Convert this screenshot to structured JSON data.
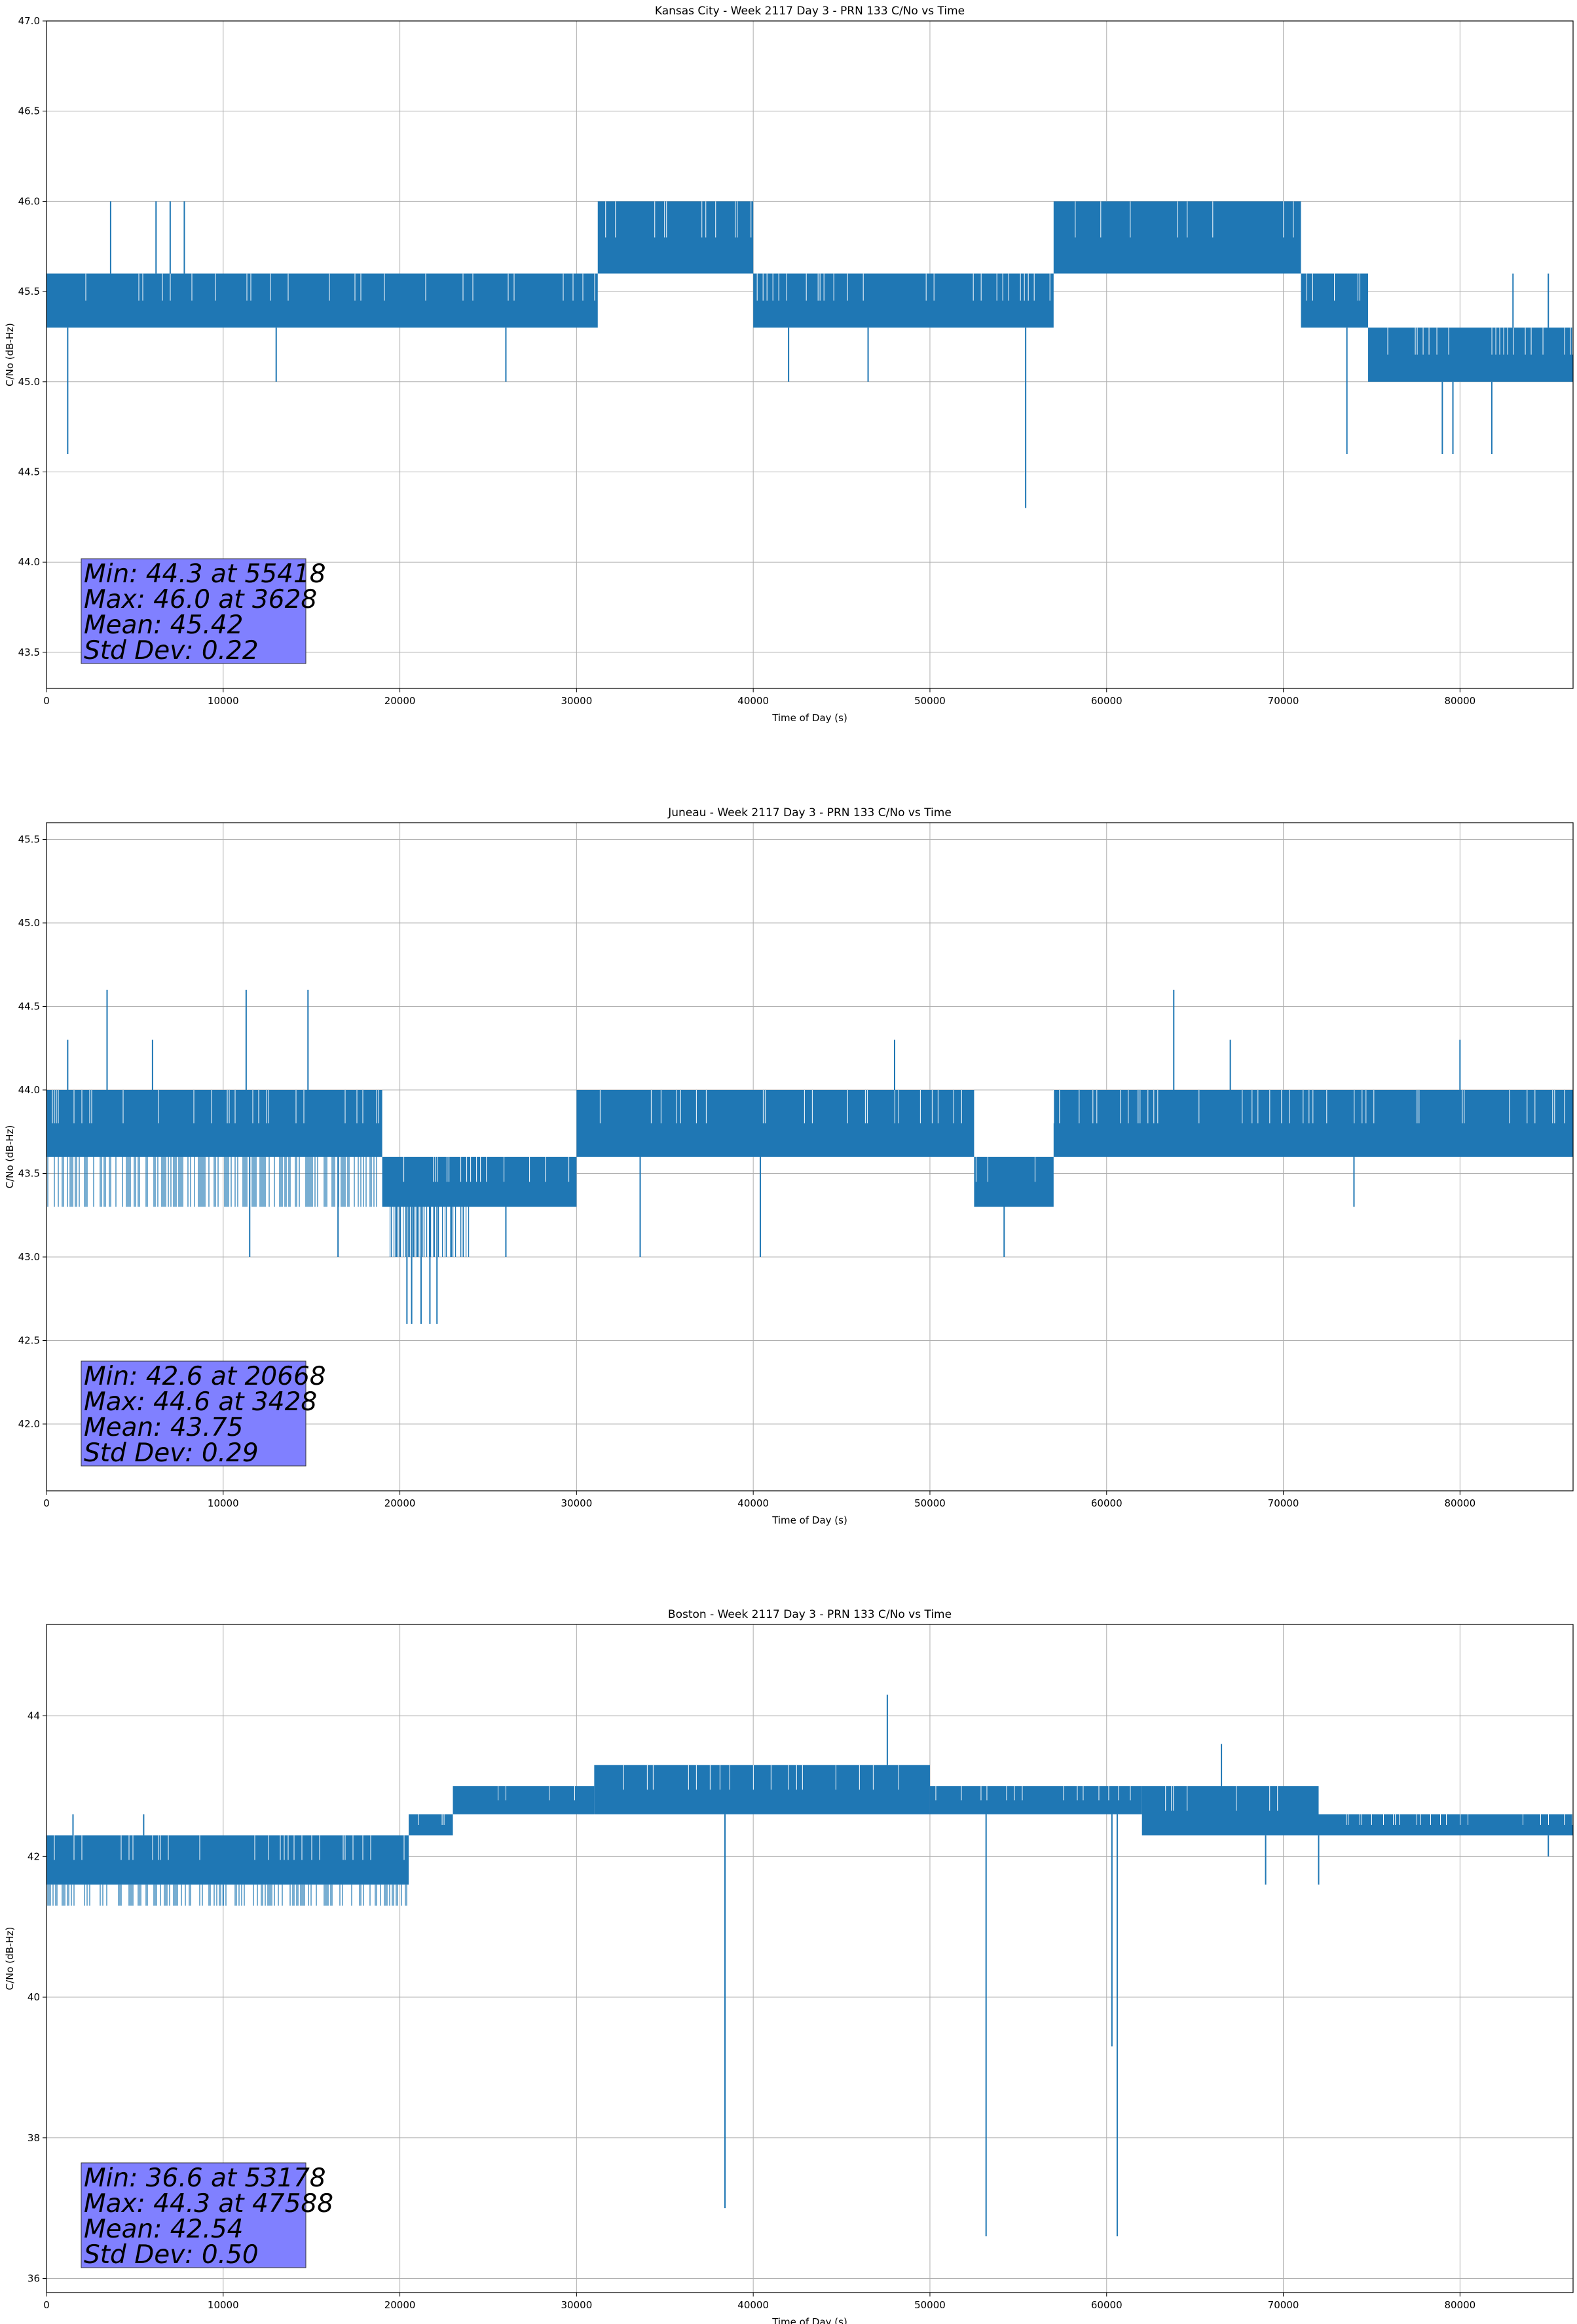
{
  "chart_data": [
    {
      "type": "line",
      "title": "Kansas City - Week 2117 Day 3 - PRN 133 C/No vs Time",
      "xlabel": "Time of Day (s)",
      "ylabel": "C/No (dB-Hz)",
      "xlim": [
        0,
        86400
      ],
      "ylim": [
        43.3,
        47.0
      ],
      "xticks": [
        0,
        10000,
        20000,
        30000,
        40000,
        50000,
        60000,
        70000,
        80000
      ],
      "yticks": [
        "43.5",
        "44.0",
        "44.5",
        "45.0",
        "45.5",
        "46.0",
        "46.5",
        "47.0"
      ],
      "grid": true,
      "color": "#1f77b4",
      "series": [
        {
          "segments": [
            {
              "x0": 0,
              "x1": 31200,
              "low": 45.3,
              "high": 45.6
            },
            {
              "x0": 31200,
              "x1": 40000,
              "low": 45.6,
              "high": 46.0
            },
            {
              "x0": 40000,
              "x1": 57000,
              "low": 45.3,
              "high": 45.6
            },
            {
              "x0": 57000,
              "x1": 71000,
              "low": 45.6,
              "high": 46.0
            },
            {
              "x0": 71000,
              "x1": 74800,
              "low": 45.3,
              "high": 45.6
            },
            {
              "x0": 74800,
              "x1": 86400,
              "low": 45.0,
              "high": 45.3
            }
          ],
          "spikes": [
            {
              "x": 1200,
              "y": 44.6
            },
            {
              "x": 3628,
              "y": 46.0
            },
            {
              "x": 6200,
              "y": 46.0
            },
            {
              "x": 7000,
              "y": 46.0
            },
            {
              "x": 7800,
              "y": 46.0
            },
            {
              "x": 13000,
              "y": 45.0
            },
            {
              "x": 26000,
              "y": 45.0
            },
            {
              "x": 33500,
              "y": 45.6
            },
            {
              "x": 42000,
              "y": 45.0
            },
            {
              "x": 46500,
              "y": 45.0
            },
            {
              "x": 55418,
              "y": 44.3
            },
            {
              "x": 73600,
              "y": 44.6
            },
            {
              "x": 79000,
              "y": 44.6
            },
            {
              "x": 79600,
              "y": 44.6
            },
            {
              "x": 81800,
              "y": 44.6
            },
            {
              "x": 83000,
              "y": 45.6
            },
            {
              "x": 85000,
              "y": 45.6
            }
          ]
        }
      ],
      "stats": [
        "Min: 44.3 at 55418",
        "Max: 46.0 at 3628",
        "Mean: 45.42",
        "Std Dev: 0.22"
      ]
    },
    {
      "type": "line",
      "title": "Juneau - Week 2117 Day 3 - PRN 133 C/No vs Time",
      "xlabel": "Time of Day (s)",
      "ylabel": "C/No (dB-Hz)",
      "xlim": [
        0,
        86400
      ],
      "ylim": [
        41.6,
        45.6
      ],
      "xticks": [
        0,
        10000,
        20000,
        30000,
        40000,
        50000,
        60000,
        70000,
        80000
      ],
      "yticks": [
        "42.0",
        "42.5",
        "43.0",
        "43.5",
        "44.0",
        "44.5",
        "45.0",
        "45.5"
      ],
      "grid": true,
      "color": "#1f77b4",
      "series": [
        {
          "segments": [
            {
              "x0": 0,
              "x1": 19000,
              "low": 43.6,
              "high": 44.0
            },
            {
              "x0": 0,
              "x1": 19000,
              "low": 43.3,
              "high": 43.6,
              "density": 0.5
            },
            {
              "x0": 19000,
              "x1": 30000,
              "low": 43.3,
              "high": 43.6
            },
            {
              "x0": 19000,
              "x1": 24000,
              "low": 43.0,
              "high": 43.3,
              "density": 0.6
            },
            {
              "x0": 30000,
              "x1": 52500,
              "low": 43.6,
              "high": 44.0
            },
            {
              "x0": 52500,
              "x1": 57000,
              "low": 43.3,
              "high": 43.6
            },
            {
              "x0": 57000,
              "x1": 86400,
              "low": 43.6,
              "high": 44.0
            }
          ],
          "spikes": [
            {
              "x": 1200,
              "y": 44.3
            },
            {
              "x": 3428,
              "y": 44.6
            },
            {
              "x": 6000,
              "y": 44.3
            },
            {
              "x": 11300,
              "y": 44.6
            },
            {
              "x": 11500,
              "y": 43.0
            },
            {
              "x": 14800,
              "y": 44.6
            },
            {
              "x": 16500,
              "y": 43.0
            },
            {
              "x": 20400,
              "y": 42.6
            },
            {
              "x": 20668,
              "y": 42.6
            },
            {
              "x": 21200,
              "y": 42.6
            },
            {
              "x": 21700,
              "y": 42.6
            },
            {
              "x": 22100,
              "y": 42.6
            },
            {
              "x": 26000,
              "y": 43.0
            },
            {
              "x": 33600,
              "y": 43.0
            },
            {
              "x": 40400,
              "y": 43.0
            },
            {
              "x": 54200,
              "y": 43.0
            },
            {
              "x": 63800,
              "y": 44.6
            },
            {
              "x": 74000,
              "y": 43.3
            },
            {
              "x": 48000,
              "y": 44.3
            },
            {
              "x": 67000,
              "y": 44.3
            },
            {
              "x": 80000,
              "y": 44.3
            }
          ]
        }
      ],
      "stats": [
        "Min: 42.6 at 20668",
        "Max: 44.6 at 3428",
        "Mean: 43.75",
        "Std Dev: 0.29"
      ]
    },
    {
      "type": "line",
      "title": "Boston - Week 2117 Day 3 - PRN 133 C/No vs Time",
      "xlabel": "Time of Day (s)",
      "ylabel": "C/No (dB-Hz)",
      "xlim": [
        0,
        86400
      ],
      "ylim": [
        35.8,
        45.3
      ],
      "xticks": [
        0,
        10000,
        20000,
        30000,
        40000,
        50000,
        60000,
        70000,
        80000
      ],
      "yticks": [
        "36",
        "38",
        "40",
        "42",
        "44"
      ],
      "grid": true,
      "color": "#1f77b4",
      "series": [
        {
          "segments": [
            {
              "x0": 0,
              "x1": 20500,
              "low": 41.6,
              "high": 42.3
            },
            {
              "x0": 0,
              "x1": 20500,
              "low": 41.3,
              "high": 41.6,
              "density": 0.4
            },
            {
              "x0": 20500,
              "x1": 23000,
              "low": 42.3,
              "high": 42.6
            },
            {
              "x0": 23000,
              "x1": 31000,
              "low": 42.6,
              "high": 43.0
            },
            {
              "x0": 31000,
              "x1": 50000,
              "low": 42.6,
              "high": 43.3
            },
            {
              "x0": 50000,
              "x1": 62000,
              "low": 42.6,
              "high": 43.0
            },
            {
              "x0": 62000,
              "x1": 72000,
              "low": 42.3,
              "high": 43.0
            },
            {
              "x0": 72000,
              "x1": 86400,
              "low": 42.3,
              "high": 42.6
            }
          ],
          "spikes": [
            {
              "x": 38400,
              "y": 37.0
            },
            {
              "x": 47588,
              "y": 44.3
            },
            {
              "x": 53178,
              "y": 36.6
            },
            {
              "x": 60300,
              "y": 39.3
            },
            {
              "x": 60600,
              "y": 36.6
            },
            {
              "x": 66500,
              "y": 43.6
            },
            {
              "x": 69000,
              "y": 41.6
            },
            {
              "x": 72000,
              "y": 41.6
            },
            {
              "x": 1500,
              "y": 42.6
            },
            {
              "x": 5500,
              "y": 42.6
            },
            {
              "x": 10000,
              "y": 41.3
            },
            {
              "x": 85000,
              "y": 42.0
            }
          ]
        }
      ],
      "stats": [
        "Min: 36.6 at 53178",
        "Max: 44.3 at 47588",
        "Mean: 42.54",
        "Std Dev: 0.50"
      ]
    }
  ]
}
